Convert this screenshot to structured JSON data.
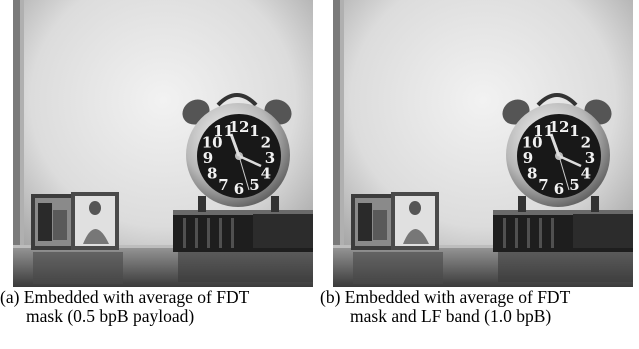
{
  "figure": {
    "panels": [
      {
        "id": "a",
        "caption_line1": "(a) Embedded with average of FDT",
        "caption_line2": "mask (0.5 bpB payload)"
      },
      {
        "id": "b",
        "caption_line1": "(b)  Embedded with average of FDT",
        "caption_line2": "mask and LF band (1.0 bpB)"
      }
    ],
    "clock_numerals": [
      "12",
      "1",
      "2",
      "3",
      "4",
      "5",
      "6",
      "7",
      "8",
      "9",
      "10",
      "11"
    ]
  }
}
